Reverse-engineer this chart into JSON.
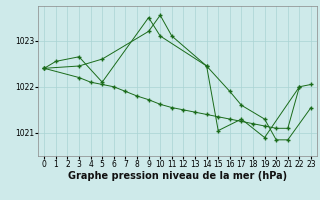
{
  "background_color": "#ceeaea",
  "grid_color": "#aad4d4",
  "line_color": "#1a6b1a",
  "marker_color": "#1a6b1a",
  "xlabel": "Graphe pression niveau de la mer (hPa)",
  "xlabel_fontsize": 7.0,
  "tick_fontsize": 5.5,
  "ylim": [
    1020.5,
    1023.75
  ],
  "xlim": [
    -0.5,
    23.5
  ],
  "yticks": [
    1021,
    1022,
    1023
  ],
  "series1_x": [
    0,
    1,
    3,
    5,
    9,
    10,
    14,
    15,
    17,
    19,
    22
  ],
  "series1_y": [
    1022.4,
    1022.55,
    1022.65,
    1022.1,
    1023.5,
    1023.1,
    1022.45,
    1021.05,
    1021.3,
    1020.9,
    1022.0
  ],
  "series2_x": [
    0,
    3,
    4,
    5,
    6,
    7,
    8,
    9,
    10,
    11,
    12,
    13,
    14,
    15,
    16,
    17,
    18,
    19,
    20,
    21,
    22,
    23
  ],
  "series2_y": [
    1022.4,
    1022.2,
    1022.1,
    1022.05,
    1022.0,
    1021.9,
    1021.8,
    1021.72,
    1021.62,
    1021.55,
    1021.5,
    1021.45,
    1021.4,
    1021.35,
    1021.3,
    1021.25,
    1021.2,
    1021.15,
    1021.1,
    1021.1,
    1022.0,
    1022.05
  ],
  "series3_x": [
    0,
    3,
    5,
    9,
    10,
    11,
    14,
    16,
    17,
    19,
    20,
    21,
    23
  ],
  "series3_y": [
    1022.4,
    1022.45,
    1022.6,
    1023.2,
    1023.55,
    1023.1,
    1022.45,
    1021.9,
    1021.6,
    1021.3,
    1020.85,
    1020.85,
    1021.55
  ]
}
